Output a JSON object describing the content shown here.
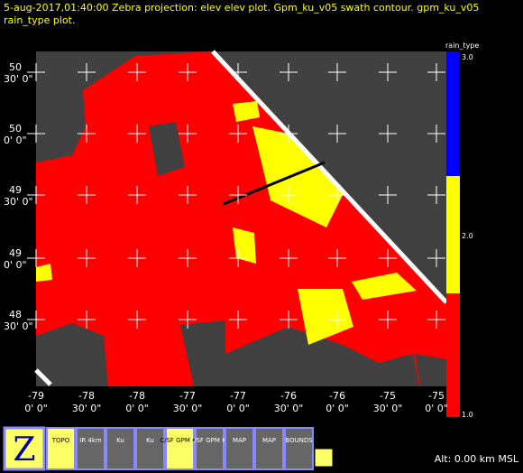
{
  "header": {
    "line1": "5-aug-2017,01:40:00  Zebra projection: elev elev  plot.  Gpm_ku_v05 swath contour.  gpm_ku_v05",
    "line2": "rain_type  plot."
  },
  "y_labels": [
    {
      "deg": "50",
      "min": "30' 0\""
    },
    {
      "deg": "50",
      "min": "0' 0\""
    },
    {
      "deg": "49",
      "min": "30' 0\""
    },
    {
      "deg": "49",
      "min": "0' 0\""
    },
    {
      "deg": "48",
      "min": "30' 0\""
    }
  ],
  "x_labels": [
    {
      "deg": "-79",
      "min": "0' 0\""
    },
    {
      "deg": "-78",
      "min": "30' 0\""
    },
    {
      "deg": "-78",
      "min": "0' 0\""
    },
    {
      "deg": "-77",
      "min": "30' 0\""
    },
    {
      "deg": "-77",
      "min": "0' 0\""
    },
    {
      "deg": "-76",
      "min": "30' 0\""
    },
    {
      "deg": "-76",
      "min": "0' 0\""
    },
    {
      "deg": "-75",
      "min": "30' 0\""
    },
    {
      "deg": "-75",
      "min": "0' 0\""
    }
  ],
  "colorbar": {
    "title": "rain_type",
    "labels": [
      "3.0",
      "2.0",
      "1.0"
    ]
  },
  "icons": [
    "TOPO",
    "IR 4km",
    "Ku",
    "Ku",
    "C/SF GPM Ku",
    "C/SF GPM Ku",
    "MAP",
    "MAP",
    "BOUNDS"
  ],
  "status": "Alt: 0.00 km MSL"
}
